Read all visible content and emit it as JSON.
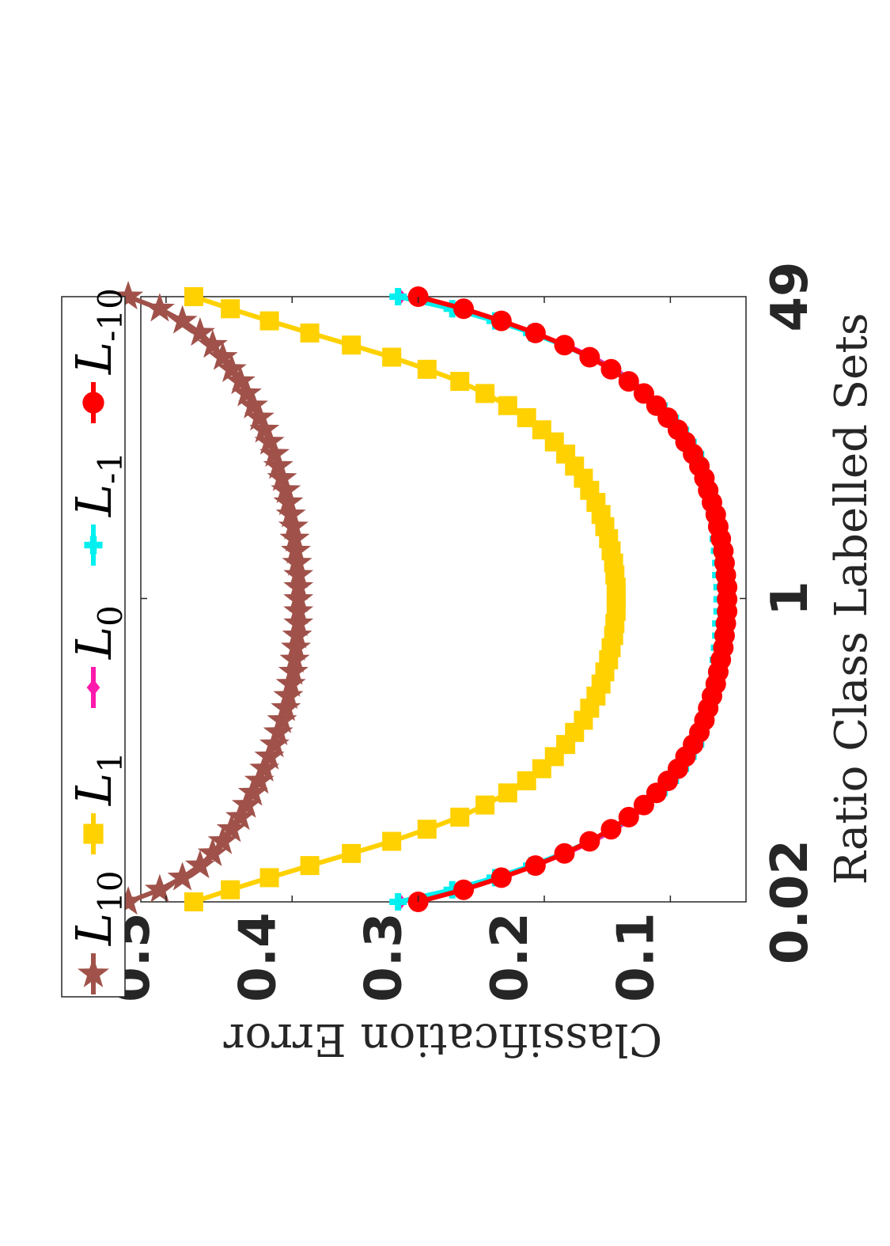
{
  "chart_data": {
    "type": "line",
    "orientation": "rotated-90-clockwise",
    "xlabel": "Ratio Class Labelled Sets",
    "ylabel": "Classification Error",
    "x_scale": "log",
    "xlim": [
      0.02,
      49
    ],
    "ylim": [
      0.04,
      0.52
    ],
    "x_ticks": [
      {
        "value": 0.02,
        "label": "0.02"
      },
      {
        "value": 1,
        "label": "1"
      },
      {
        "value": 49,
        "label": "49"
      }
    ],
    "y_ticks": [
      {
        "value": 0.1,
        "label": "0.1"
      },
      {
        "value": 0.2,
        "label": "0.2"
      },
      {
        "value": 0.3,
        "label": "0.3"
      },
      {
        "value": 0.4,
        "label": "0.4"
      },
      {
        "value": 0.5,
        "label": "0.5"
      }
    ],
    "grid": false,
    "legend_position": "top",
    "series": [
      {
        "name": "L10",
        "base": "L",
        "sub": "10",
        "color": "#A0524A",
        "marker": "star",
        "y": [
          0.53,
          0.505,
          0.487,
          0.473,
          0.463,
          0.455,
          0.448,
          0.441,
          0.436,
          0.431,
          0.426,
          0.422,
          0.418,
          0.414,
          0.411,
          0.408,
          0.405,
          0.403,
          0.401,
          0.399,
          0.398,
          0.397,
          0.396,
          0.395,
          0.395,
          0.395,
          0.395,
          0.395,
          0.396,
          0.397,
          0.398,
          0.399,
          0.401,
          0.403,
          0.405,
          0.408,
          0.411,
          0.414,
          0.418,
          0.422,
          0.426,
          0.431,
          0.436,
          0.441,
          0.448,
          0.455,
          0.463,
          0.473,
          0.487,
          0.505,
          0.53
        ]
      },
      {
        "name": "L1",
        "base": "L",
        "sub": "1",
        "color": "#FFD100",
        "marker": "square",
        "y": [
          0.478,
          0.449,
          0.418,
          0.386,
          0.353,
          0.321,
          0.293,
          0.267,
          0.247,
          0.229,
          0.214,
          0.202,
          0.192,
          0.183,
          0.176,
          0.169,
          0.164,
          0.159,
          0.155,
          0.152,
          0.149,
          0.147,
          0.145,
          0.144,
          0.143,
          0.143,
          0.143,
          0.144,
          0.145,
          0.147,
          0.149,
          0.152,
          0.155,
          0.159,
          0.164,
          0.169,
          0.176,
          0.183,
          0.192,
          0.202,
          0.214,
          0.229,
          0.247,
          0.267,
          0.293,
          0.321,
          0.353,
          0.386,
          0.418,
          0.449,
          0.478
        ]
      },
      {
        "name": "L0",
        "base": "L",
        "sub": "0",
        "color": "#FF1AAE",
        "marker": "diamond",
        "y": [
          0.314,
          0.272,
          0.238,
          0.209,
          0.183,
          0.162,
          0.144,
          0.13,
          0.118,
          0.107,
          0.098,
          0.09,
          0.084,
          0.078,
          0.074,
          0.07,
          0.067,
          0.065,
          0.063,
          0.061,
          0.06,
          0.059,
          0.058,
          0.058,
          0.057,
          0.057,
          0.057,
          0.058,
          0.058,
          0.059,
          0.06,
          0.061,
          0.063,
          0.065,
          0.067,
          0.07,
          0.074,
          0.078,
          0.084,
          0.09,
          0.098,
          0.107,
          0.118,
          0.13,
          0.144,
          0.162,
          0.183,
          0.209,
          0.238,
          0.272,
          0.314
        ]
      },
      {
        "name": "L-1",
        "base": "L",
        "sub": "-1",
        "color": "#00F0F0",
        "marker": "plus",
        "y": [
          0.316,
          0.273,
          0.239,
          0.21,
          0.185,
          0.164,
          0.146,
          0.132,
          0.12,
          0.109,
          0.1,
          0.092,
          0.086,
          0.08,
          0.076,
          0.072,
          0.069,
          0.067,
          0.065,
          0.063,
          0.062,
          0.061,
          0.06,
          0.06,
          0.059,
          0.059,
          0.059,
          0.06,
          0.06,
          0.061,
          0.062,
          0.063,
          0.065,
          0.067,
          0.069,
          0.072,
          0.076,
          0.08,
          0.086,
          0.092,
          0.1,
          0.109,
          0.12,
          0.132,
          0.146,
          0.164,
          0.185,
          0.21,
          0.239,
          0.273,
          0.316
        ]
      },
      {
        "name": "L-10",
        "base": "L",
        "sub": "-10",
        "color": "#FF0000",
        "marker": "circle",
        "y": [
          0.3,
          0.264,
          0.234,
          0.207,
          0.184,
          0.164,
          0.147,
          0.133,
          0.121,
          0.111,
          0.102,
          0.094,
          0.088,
          0.082,
          0.077,
          0.073,
          0.07,
          0.067,
          0.064,
          0.062,
          0.06,
          0.058,
          0.057,
          0.056,
          0.055,
          0.055,
          0.055,
          0.056,
          0.057,
          0.058,
          0.06,
          0.062,
          0.064,
          0.067,
          0.07,
          0.073,
          0.077,
          0.082,
          0.088,
          0.094,
          0.102,
          0.111,
          0.121,
          0.133,
          0.147,
          0.164,
          0.184,
          0.207,
          0.234,
          0.264,
          0.3
        ]
      }
    ]
  }
}
